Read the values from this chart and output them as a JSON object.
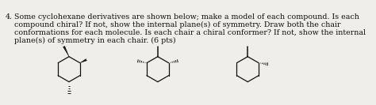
{
  "question_number": "4.",
  "text_lines": [
    "Some cyclohexane derivatives are shown below; make a model of each compound. Is each",
    "compound chiral? If not, show the internal plane(s) of symmetry. Draw both the chair",
    "conformations for each molecule. Is each chair a chiral conformer? If not, show the internal",
    "plane(s) of symmetry in each chair. (6 pts)"
  ],
  "background": "#f0eeea",
  "text_color": "#111111",
  "font_size": 6.8,
  "figure_width": 4.74,
  "figure_height": 1.33,
  "dpi": 100
}
